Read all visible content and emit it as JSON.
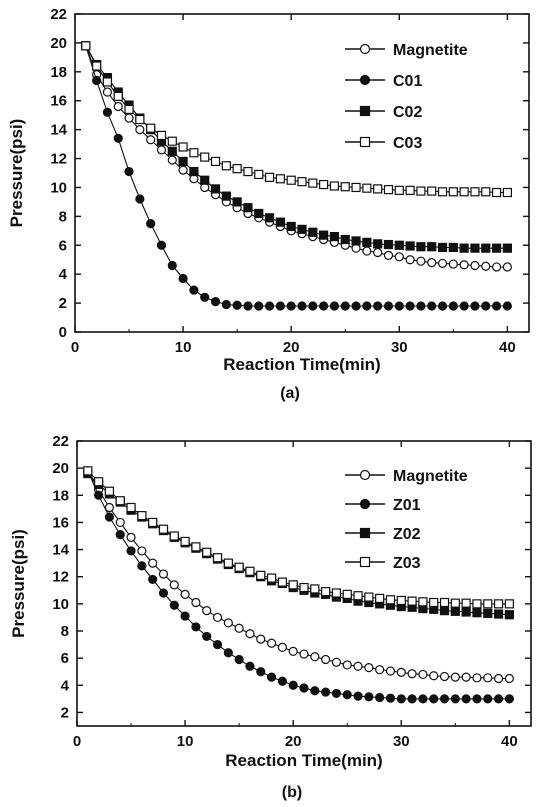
{
  "chart_data": [
    {
      "type": "line",
      "panel_label": "(a)",
      "xlabel": "Reaction Time(min)",
      "ylabel": "Pressure(psi)",
      "xlim": [
        0,
        42
      ],
      "ylim": [
        0,
        22
      ],
      "xticks": [
        0,
        10,
        20,
        30,
        40
      ],
      "yticks": [
        0,
        2,
        4,
        6,
        8,
        10,
        12,
        14,
        16,
        18,
        20,
        22
      ],
      "grid": false,
      "legend_position": "top-right",
      "x": [
        1,
        2,
        3,
        4,
        5,
        6,
        7,
        8,
        9,
        10,
        11,
        12,
        13,
        14,
        15,
        16,
        17,
        18,
        19,
        20,
        21,
        22,
        23,
        24,
        25,
        26,
        27,
        28,
        29,
        30,
        31,
        32,
        33,
        34,
        35,
        36,
        37,
        38,
        39,
        40
      ],
      "series": [
        {
          "name": "Magnetite",
          "marker": "open-circle",
          "values": [
            19.8,
            17.8,
            16.6,
            15.6,
            14.8,
            14.0,
            13.3,
            12.6,
            11.9,
            11.2,
            10.6,
            10.0,
            9.5,
            9.0,
            8.6,
            8.2,
            7.9,
            7.6,
            7.3,
            7.0,
            6.8,
            6.6,
            6.4,
            6.2,
            6.0,
            5.8,
            5.6,
            5.5,
            5.3,
            5.2,
            5.0,
            4.9,
            4.8,
            4.75,
            4.7,
            4.65,
            4.6,
            4.55,
            4.5,
            4.5
          ]
        },
        {
          "name": "C01",
          "marker": "filled-circle",
          "values": [
            19.8,
            17.4,
            15.2,
            13.4,
            11.1,
            9.2,
            7.5,
            6.0,
            4.6,
            3.7,
            2.9,
            2.4,
            2.1,
            1.9,
            1.85,
            1.8,
            1.8,
            1.8,
            1.8,
            1.8,
            1.8,
            1.8,
            1.8,
            1.8,
            1.8,
            1.8,
            1.8,
            1.8,
            1.8,
            1.8,
            1.8,
            1.8,
            1.8,
            1.8,
            1.8,
            1.8,
            1.8,
            1.8,
            1.8,
            1.8
          ]
        },
        {
          "name": "C02",
          "marker": "filled-square",
          "values": [
            19.8,
            18.5,
            17.6,
            16.6,
            15.7,
            14.8,
            14.0,
            13.2,
            12.5,
            11.8,
            11.1,
            10.5,
            9.9,
            9.4,
            9.0,
            8.6,
            8.2,
            7.9,
            7.6,
            7.3,
            7.1,
            6.9,
            6.7,
            6.6,
            6.4,
            6.3,
            6.2,
            6.1,
            6.05,
            6.0,
            5.95,
            5.9,
            5.9,
            5.85,
            5.85,
            5.8,
            5.8,
            5.8,
            5.8,
            5.8
          ]
        },
        {
          "name": "C03",
          "marker": "open-square",
          "values": [
            19.8,
            18.4,
            17.3,
            16.3,
            15.4,
            14.7,
            14.1,
            13.6,
            13.2,
            12.8,
            12.4,
            12.1,
            11.8,
            11.5,
            11.3,
            11.1,
            10.9,
            10.7,
            10.6,
            10.5,
            10.4,
            10.3,
            10.2,
            10.1,
            10.05,
            10.0,
            9.95,
            9.9,
            9.85,
            9.8,
            9.8,
            9.75,
            9.75,
            9.7,
            9.7,
            9.7,
            9.7,
            9.7,
            9.65,
            9.65
          ]
        }
      ]
    },
    {
      "type": "line",
      "panel_label": "(b)",
      "xlabel": "Reaction Time(min)",
      "ylabel": "Pressure(psi)",
      "xlim": [
        0,
        42
      ],
      "ylim": [
        1,
        22
      ],
      "xticks": [
        0,
        10,
        20,
        30,
        40
      ],
      "yticks": [
        2,
        4,
        6,
        8,
        10,
        12,
        14,
        16,
        18,
        20,
        22
      ],
      "grid": false,
      "legend_position": "top-right",
      "x": [
        1,
        2,
        3,
        4,
        5,
        6,
        7,
        8,
        9,
        10,
        11,
        12,
        13,
        14,
        15,
        16,
        17,
        18,
        19,
        20,
        21,
        22,
        23,
        24,
        25,
        26,
        27,
        28,
        29,
        30,
        31,
        32,
        33,
        34,
        35,
        36,
        37,
        38,
        39,
        40
      ],
      "series": [
        {
          "name": "Magnetite",
          "marker": "open-circle",
          "values": [
            19.8,
            18.4,
            17.1,
            16.0,
            14.9,
            13.9,
            13.0,
            12.2,
            11.4,
            10.7,
            10.1,
            9.5,
            9.0,
            8.6,
            8.2,
            7.8,
            7.4,
            7.1,
            6.8,
            6.5,
            6.3,
            6.1,
            5.9,
            5.7,
            5.5,
            5.4,
            5.3,
            5.15,
            5.05,
            4.95,
            4.85,
            4.8,
            4.7,
            4.65,
            4.6,
            4.6,
            4.55,
            4.55,
            4.5,
            4.5
          ]
        },
        {
          "name": "Z01",
          "marker": "filled-circle",
          "values": [
            19.8,
            18.0,
            16.4,
            15.1,
            13.9,
            12.8,
            11.8,
            10.8,
            9.9,
            9.1,
            8.3,
            7.6,
            7.0,
            6.4,
            5.9,
            5.4,
            5.0,
            4.6,
            4.3,
            4.0,
            3.8,
            3.6,
            3.5,
            3.4,
            3.3,
            3.2,
            3.15,
            3.1,
            3.05,
            3.0,
            3.0,
            3.0,
            3.0,
            3.0,
            3.0,
            3.0,
            3.0,
            3.0,
            3.0,
            3.0
          ]
        },
        {
          "name": "Z02",
          "marker": "filled-square",
          "values": [
            19.6,
            18.8,
            18.1,
            17.5,
            16.9,
            16.4,
            15.9,
            15.4,
            14.9,
            14.5,
            14.1,
            13.7,
            13.3,
            12.9,
            12.6,
            12.3,
            12.0,
            11.7,
            11.5,
            11.2,
            11.0,
            10.8,
            10.7,
            10.5,
            10.4,
            10.2,
            10.1,
            10.0,
            9.9,
            9.8,
            9.75,
            9.65,
            9.6,
            9.5,
            9.45,
            9.4,
            9.35,
            9.3,
            9.25,
            9.2
          ]
        },
        {
          "name": "Z03",
          "marker": "open-square",
          "values": [
            19.8,
            19.0,
            18.3,
            17.6,
            17.1,
            16.5,
            16.0,
            15.5,
            15.0,
            14.6,
            14.2,
            13.8,
            13.4,
            13.0,
            12.7,
            12.4,
            12.1,
            11.9,
            11.6,
            11.4,
            11.2,
            11.1,
            10.9,
            10.8,
            10.7,
            10.6,
            10.5,
            10.4,
            10.3,
            10.25,
            10.2,
            10.15,
            10.1,
            10.1,
            10.05,
            10.05,
            10.0,
            10.0,
            10.0,
            10.0
          ]
        }
      ]
    }
  ]
}
